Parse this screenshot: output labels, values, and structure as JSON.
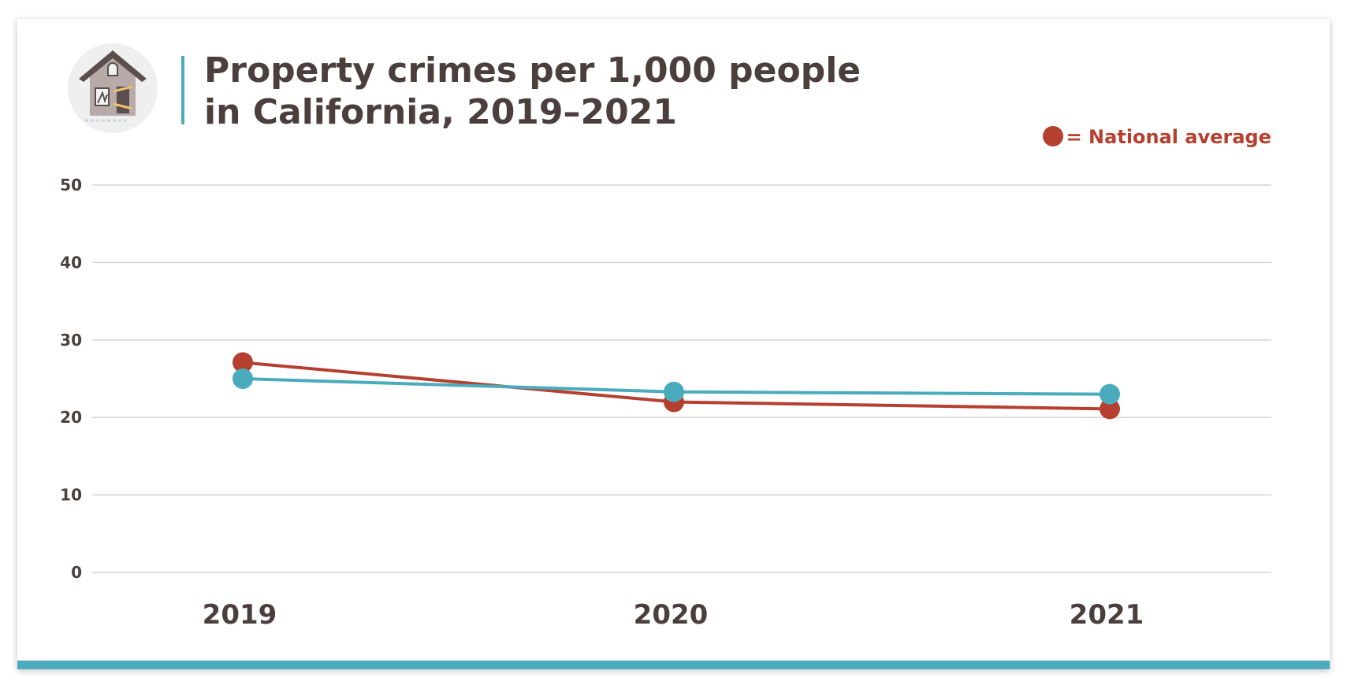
{
  "chart_data": {
    "type": "line",
    "title_lines": [
      "Property crimes per 1,000 people",
      "in California, 2019–2021"
    ],
    "categories": [
      "2019",
      "2020",
      "2021"
    ],
    "series": [
      {
        "key": "california",
        "color": "#4aabbd",
        "values": [
          25.0,
          23.3,
          23.0
        ]
      },
      {
        "name": "National average",
        "key": "national",
        "color": "#b5402f",
        "values": [
          27.1,
          22.0,
          21.1
        ]
      }
    ],
    "legend": {
      "label": "= National average",
      "placement": "top-right"
    },
    "ylim": [
      0,
      50
    ],
    "yticks": [
      0,
      10,
      20,
      30,
      40,
      50
    ],
    "grid": true,
    "xlabel": "",
    "ylabel": ""
  },
  "icon": "broken-house-icon",
  "colors": {
    "accent": "#4aabbd",
    "text": "#4a3f3d",
    "national": "#b5402f"
  }
}
